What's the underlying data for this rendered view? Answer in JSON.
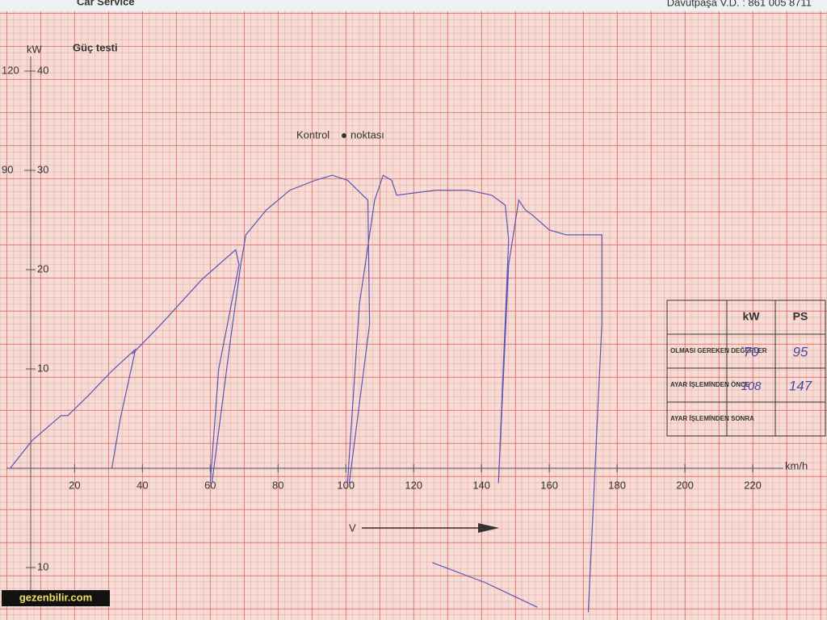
{
  "header": {
    "left": "Car Service",
    "right": "Davutpaşa V.D. : 861 005 8711"
  },
  "watermark": "gezenbilir.com",
  "table": {
    "columns": [
      "kW",
      "PS"
    ],
    "rows": [
      {
        "label": "OLMASI GEREKEN DEĞERLER",
        "kw": "70",
        "ps": "95"
      },
      {
        "label": "AYAR İŞLEMİNDEN ÖNCE",
        "kw": "108",
        "ps": "147"
      },
      {
        "label": "AYAR İŞLEMİNDEN SONRA"
      }
    ]
  },
  "chart_data": {
    "type": "line",
    "title": "Güç testi",
    "y_label": "kW",
    "x_label": "km/h",
    "annotations": {
      "control": "Kontrol",
      "point": "noktası",
      "speed": "V"
    },
    "xlim": [
      -2,
      240
    ],
    "xticks": [
      20,
      40,
      60,
      80,
      100,
      120,
      140,
      160,
      180,
      200,
      220
    ],
    "ylim": [
      -15,
      45
    ],
    "yticks": [
      {
        "value": -10,
        "label": "10"
      },
      10,
      20,
      30,
      40
    ],
    "y2lim": [
      -45,
      135
    ],
    "y2ticks": [
      90,
      120
    ],
    "series": [
      {
        "color": "#5b55b4",
        "x": [
          1,
          7.5,
          16,
          18,
          24,
          31,
          38,
          null,
          31,
          33.5,
          38,
          null,
          37,
          45.5,
          57.5,
          67.5,
          68.5,
          62.5,
          60,
          null,
          60.5,
          66,
          69,
          70.5,
          76.5,
          83.5,
          91,
          96,
          100.5,
          105,
          106.5,
          107,
          101,
          null,
          100.5,
          104,
          108.5,
          111,
          113.5,
          115,
          126.5,
          136,
          143,
          147,
          148,
          145,
          null,
          145,
          148,
          151,
          153,
          155,
          160,
          165,
          175.5,
          175.5,
          171.5,
          null,
          125.5,
          141,
          156.5
        ],
        "values": [
          0,
          2.8,
          5.3,
          5.3,
          7.3,
          9.8,
          12,
          null,
          0,
          5,
          12,
          null,
          11.5,
          14.5,
          19,
          22,
          20.5,
          10,
          -1.5,
          null,
          -1.5,
          13,
          20.5,
          23.5,
          26,
          28,
          29,
          29.5,
          29,
          27.5,
          27,
          14.5,
          -1.5,
          null,
          -1.5,
          16.5,
          27,
          29.5,
          29,
          27.5,
          28,
          28,
          27.5,
          26.5,
          23,
          -1.5,
          null,
          -1.5,
          20.5,
          27,
          26,
          25.5,
          24,
          23.5,
          23.5,
          14.5,
          -14.5,
          null,
          -9.5,
          -11.5,
          -14
        ]
      }
    ]
  }
}
